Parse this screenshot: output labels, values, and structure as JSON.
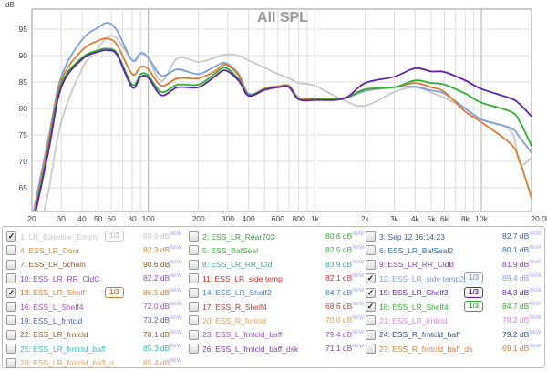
{
  "chart_data": {
    "type": "line",
    "title": "All SPL",
    "ylabel": "dB",
    "xlabel": "",
    "xscale": "log",
    "xlim": [
      20,
      20000
    ],
    "ylim": [
      60.5,
      98.8
    ],
    "grid": true,
    "yticks": [
      65,
      70,
      75,
      80,
      85,
      90,
      95
    ],
    "xtick_labels": [
      [
        "20",
        20
      ],
      [
        "30",
        30
      ],
      [
        "40",
        40
      ],
      [
        "50",
        50
      ],
      [
        "60",
        60
      ],
      [
        "80",
        80
      ],
      [
        "100",
        100
      ],
      [
        "200",
        200
      ],
      [
        "300",
        300
      ],
      [
        "400",
        400
      ],
      [
        "600",
        600
      ],
      [
        "800",
        800
      ],
      [
        "1k",
        1000
      ],
      [
        "2k",
        2000
      ],
      [
        "3k",
        3000
      ],
      [
        "4k",
        4000
      ],
      [
        "5k",
        5000
      ],
      [
        "6k",
        6000
      ],
      [
        "8k",
        8000
      ],
      [
        "10k",
        10000
      ],
      [
        "20.0kHz",
        20000
      ]
    ],
    "x": [
      20,
      25,
      30,
      40,
      50,
      57,
      65,
      80,
      90,
      100,
      120,
      150,
      200,
      250,
      290,
      350,
      400,
      500,
      600,
      700,
      800,
      1000,
      1500,
      2000,
      3000,
      4000,
      5000,
      6000,
      8000,
      10000,
      15000,
      17000,
      20000
    ],
    "series": [
      {
        "name": "1: LR_Baseline_Empty",
        "color": "#c8c8c8",
        "values": [
          50,
          64,
          77.4,
          87.5,
          91.4,
          93.5,
          93.2,
          89.1,
          90.6,
          89.5,
          85.2,
          89.5,
          88.8,
          89.6,
          90.2,
          90,
          89.1,
          87.7,
          86.5,
          85.7,
          84.8,
          84.3,
          81.5,
          80.5,
          83.1,
          84,
          83,
          82,
          80,
          78,
          75.8,
          69.6,
          70.7
        ]
      },
      {
        "name": "12: ESS_LR_side temp2",
        "color": "#7aa0e0",
        "values": [
          59,
          74,
          86,
          93,
          95.3,
          96.2,
          94.7,
          89.1,
          90.4,
          89.6,
          86.2,
          87.4,
          86.5,
          87.9,
          88.6,
          86.5,
          82.8,
          83.6,
          84,
          84.1,
          82,
          81.8,
          81.9,
          83.3,
          84,
          84.1,
          83.4,
          82.8,
          80,
          77.9,
          76.3,
          74.5,
          71.6
        ]
      },
      {
        "name": "13: ESS_LR_Shelf",
        "color": "#e07a30",
        "values": [
          58,
          73,
          85.2,
          91,
          92.8,
          93.2,
          92,
          86.5,
          87.9,
          87.4,
          84.3,
          85.7,
          85.7,
          87,
          88.3,
          86.2,
          82.6,
          83.8,
          84.2,
          84.3,
          82,
          81.8,
          82,
          83.6,
          84,
          84.8,
          84,
          83.1,
          79.4,
          77.4,
          73.3,
          70,
          63
        ]
      },
      {
        "name": "18: ESS_LR_Shelf4",
        "color": "#30b030",
        "values": [
          57.5,
          72,
          84.5,
          89.6,
          91,
          91.3,
          90.4,
          84.5,
          86.5,
          86.2,
          83.1,
          84.5,
          84.5,
          86.5,
          87.7,
          85.5,
          82.6,
          83.6,
          84,
          84.1,
          81.8,
          81.7,
          81.9,
          83.6,
          84,
          85.3,
          84.8,
          84.5,
          82.8,
          81.1,
          79.4,
          77.5,
          72.9
        ]
      },
      {
        "name": "15: ESS_LR_Shelf3",
        "color": "#6020b0",
        "values": [
          57,
          71.5,
          84,
          89.3,
          90.7,
          91,
          90.1,
          84,
          86,
          85.8,
          82.5,
          84,
          84,
          86,
          87.2,
          85.2,
          82.4,
          83.5,
          84,
          84,
          81.7,
          81.6,
          81.9,
          84.8,
          86,
          87.6,
          87,
          86.9,
          85.3,
          83.7,
          81.9,
          80.8,
          78.5
        ]
      }
    ]
  },
  "legend": {
    "badge": "1/3",
    "new": "NEW",
    "items": [
      {
        "label": "1: LR_Baseline_Empty",
        "value": "88.9 dB",
        "color": "#c8c8c8",
        "checked": true,
        "smoothing": true
      },
      {
        "label": "4: ESS_LR_Door",
        "value": "82.3 dB",
        "color": "#d08a40",
        "checked": false
      },
      {
        "label": "7: ESS_LR_5chain",
        "value": "90.6 dB",
        "color": "#8a5a30",
        "checked": false
      },
      {
        "label": "10: ESS_LR_RR_CldC",
        "value": "82.2 dB",
        "color": "#9050b0",
        "checked": false
      },
      {
        "label": "13: ESS_LR_Shelf",
        "value": "86.5 dB",
        "color": "#e07a30",
        "checked": true,
        "smoothing": true
      },
      {
        "label": "16: ESS_L_Shelf4",
        "value": "72.0 dB",
        "color": "#a050c0",
        "checked": false
      },
      {
        "label": "19: ESS_L_frntcld",
        "value": "73.2 dB",
        "color": "#5060b0",
        "checked": false
      },
      {
        "label": "22: ESS_LR_frntcld",
        "value": "78.1 dB",
        "color": "#906030",
        "checked": false
      },
      {
        "label": "25: ESS_LR_frntcld_baff",
        "value": "85.3 dB",
        "color": "#30c0c0",
        "checked": false
      },
      {
        "label": "28: ESS_LR_frntcld_baff_d",
        "value": "85.4 dB",
        "color": "#e0a060",
        "checked": false
      },
      {
        "label": "2: ESS_LR_Rear703",
        "value": "80.6 dB",
        "color": "#40a040",
        "checked": false
      },
      {
        "label": "5: ESS_BafSeal",
        "value": "82.5 dB",
        "color": "#40b040",
        "checked": false
      },
      {
        "label": "8: ESS_LR_RR_Cld",
        "value": "83.9 dB",
        "color": "#40a0a0",
        "checked": false
      },
      {
        "label": "11: ESS_LR_side temp",
        "value": "82.1 dB",
        "color": "#c03030",
        "checked": false
      },
      {
        "label": "14: ESS_LR_Shelf2",
        "value": "84.7 dB",
        "color": "#4080c0",
        "checked": false
      },
      {
        "label": "17: ESS_R_Shelf4",
        "value": "68.6 dB",
        "color": "#b04040",
        "checked": false
      },
      {
        "label": "20: ESS_R_frntcld",
        "value": "70.0 dB",
        "color": "#e0a050",
        "checked": false
      },
      {
        "label": "23: ESS_L_frntcld_baff",
        "value": "79.4 dB",
        "color": "#a050c0",
        "checked": false
      },
      {
        "label": "26: ESS_L_frntcld_baff_dsk",
        "value": "71.1 dB",
        "color": "#8040b0",
        "checked": false
      },
      {
        "label": "3: Sep 12 16:14:23",
        "value": "82.7 dB",
        "color": "#4060a0",
        "checked": false
      },
      {
        "label": "6: ESS_LR_BafSeal2",
        "value": "80.1 dB",
        "color": "#3070b0",
        "checked": false
      },
      {
        "label": "9: ESS_LR_RR_CldB",
        "value": "81.9 dB",
        "color": "#8040a0",
        "checked": false
      },
      {
        "label": "12: ESS_LR_side temp2",
        "value": "89.4 dB",
        "color": "#80a0e0",
        "checked": true,
        "smoothing": true
      },
      {
        "label": "15: ESS_LR_Shelf3",
        "value": "84.3 dB",
        "color": "#6020b0",
        "checked": true,
        "smoothing": true
      },
      {
        "label": "18: ESS_LR_Shelf4",
        "value": "84.7 dB",
        "color": "#30b030",
        "checked": true,
        "smoothing": true
      },
      {
        "label": "21: ESS_LR_frntcld",
        "value": "78.2 dB",
        "color": "#e080e0",
        "checked": false
      },
      {
        "label": "24: ESS_R_frntcld_baff",
        "value": "79.2 dB",
        "color": "#305080",
        "checked": false
      },
      {
        "label": "27: ESS_R_frntcld_baff_ds",
        "value": "69.1 dB",
        "color": "#d08030",
        "checked": false
      }
    ]
  }
}
